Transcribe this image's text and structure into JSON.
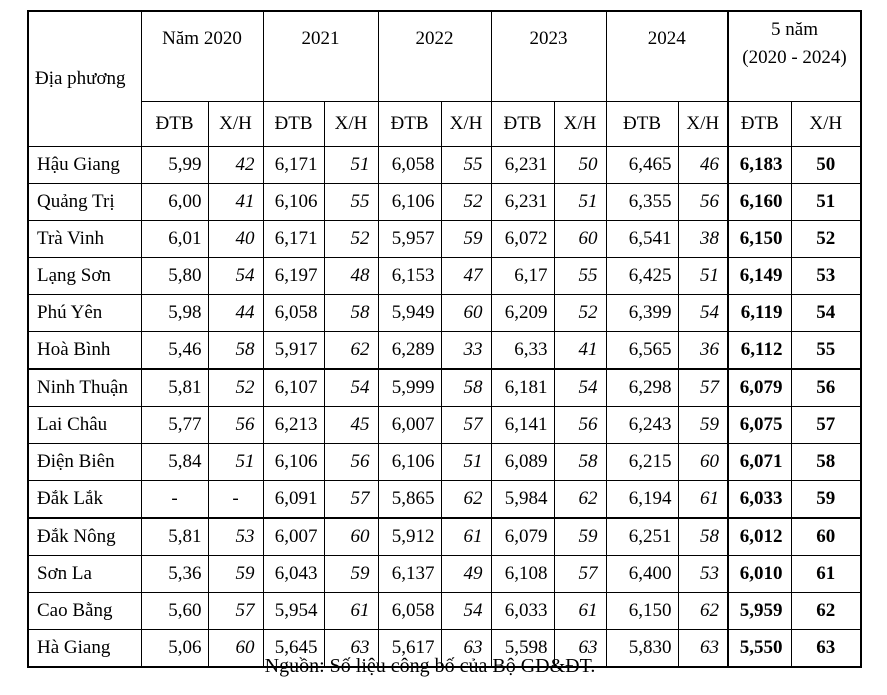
{
  "header": {
    "region": "Địa phương",
    "years": [
      "Năm 2020",
      "2021",
      "2022",
      "2023",
      "2024"
    ],
    "total": [
      "5 năm",
      "(2020 - 2024)"
    ],
    "sub_headers": [
      "ĐTB",
      "X/H",
      "ĐTB",
      "X/H",
      "ĐTB",
      "X/H",
      "ĐTB",
      "X/H",
      "ĐTB",
      "X/H",
      "ĐTB",
      "X/H"
    ]
  },
  "table": {
    "rows": [
      [
        "Hậu Giang",
        "5,99",
        "42",
        "6,171",
        "51",
        "6,058",
        "55",
        "6,231",
        "50",
        "6,465",
        "46",
        "6,183",
        "50"
      ],
      [
        "Quảng Trị",
        "6,00",
        "41",
        "6,106",
        "55",
        "6,106",
        "52",
        "6,231",
        "51",
        "6,355",
        "56",
        "6,160",
        "51"
      ],
      [
        "Trà Vinh",
        "6,01",
        "40",
        "6,171",
        "52",
        "5,957",
        "59",
        "6,072",
        "60",
        "6,541",
        "38",
        "6,150",
        "52"
      ],
      [
        "Lạng Sơn",
        "5,80",
        "54",
        "6,197",
        "48",
        "6,153",
        "47",
        "6,17",
        "55",
        "6,425",
        "51",
        "6,149",
        "53"
      ],
      [
        "Phú Yên",
        "5,98",
        "44",
        "6,058",
        "58",
        "5,949",
        "60",
        "6,209",
        "52",
        "6,399",
        "54",
        "6,119",
        "54"
      ],
      [
        "Hoà Bình",
        "5,46",
        "58",
        "5,917",
        "62",
        "6,289",
        "33",
        "6,33",
        "41",
        "6,565",
        "36",
        "6,112",
        "55"
      ],
      [
        "Ninh Thuận",
        "5,81",
        "52",
        "6,107",
        "54",
        "5,999",
        "58",
        "6,181",
        "54",
        "6,298",
        "57",
        "6,079",
        "56"
      ],
      [
        "Lai Châu",
        "5,77",
        "56",
        "6,213",
        "45",
        "6,007",
        "57",
        "6,141",
        "56",
        "6,243",
        "59",
        "6,075",
        "57"
      ],
      [
        "Điện Biên",
        "5,84",
        "51",
        "6,106",
        "56",
        "6,106",
        "51",
        "6,089",
        "58",
        "6,215",
        "60",
        "6,071",
        "58"
      ],
      [
        "Đắk Lắk",
        "-",
        "-",
        "6,091",
        "57",
        "5,865",
        "62",
        "5,984",
        "62",
        "6,194",
        "61",
        "6,033",
        "59"
      ],
      [
        "Đắk Nông",
        "5,81",
        "53",
        "6,007",
        "60",
        "5,912",
        "61",
        "6,079",
        "59",
        "6,251",
        "58",
        "6,012",
        "60"
      ],
      [
        "Sơn La",
        "5,36",
        "59",
        "6,043",
        "59",
        "6,137",
        "49",
        "6,108",
        "57",
        "6,400",
        "53",
        "6,010",
        "61"
      ],
      [
        "Cao Bằng",
        "5,60",
        "57",
        "5,954",
        "61",
        "6,058",
        "54",
        "6,033",
        "61",
        "6,150",
        "62",
        "5,959",
        "62"
      ],
      [
        "Hà Giang",
        "5,06",
        "60",
        "5,645",
        "63",
        "5,617",
        "63",
        "5,598",
        "63",
        "5,830",
        "63",
        "5,550",
        "63"
      ]
    ]
  },
  "footer": {
    "source": "Nguồn: Số liệu công bố của Bộ GD&ĐT."
  }
}
